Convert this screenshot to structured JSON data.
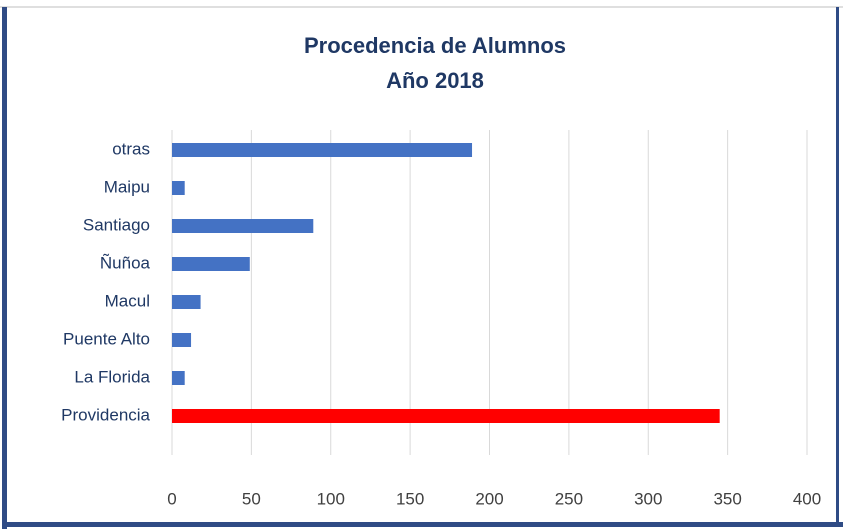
{
  "chart_data": {
    "type": "bar",
    "orientation": "horizontal",
    "title": [
      "Procedencia de Alumnos",
      "Año 2018"
    ],
    "categories": [
      "otras",
      "Maipu",
      "Santiago",
      "Ñuñoa",
      "Macul",
      "Puente Alto",
      "La Florida",
      "Providencia"
    ],
    "values": [
      189,
      8,
      89,
      49,
      18,
      12,
      8,
      345
    ],
    "colors": [
      "#4472c4",
      "#4472c4",
      "#4472c4",
      "#4472c4",
      "#4472c4",
      "#4472c4",
      "#4472c4",
      "#ff0000"
    ],
    "xlim": [
      0,
      400
    ],
    "xticks": [
      0,
      50,
      100,
      150,
      200,
      250,
      300,
      350,
      400
    ],
    "grid": true
  }
}
